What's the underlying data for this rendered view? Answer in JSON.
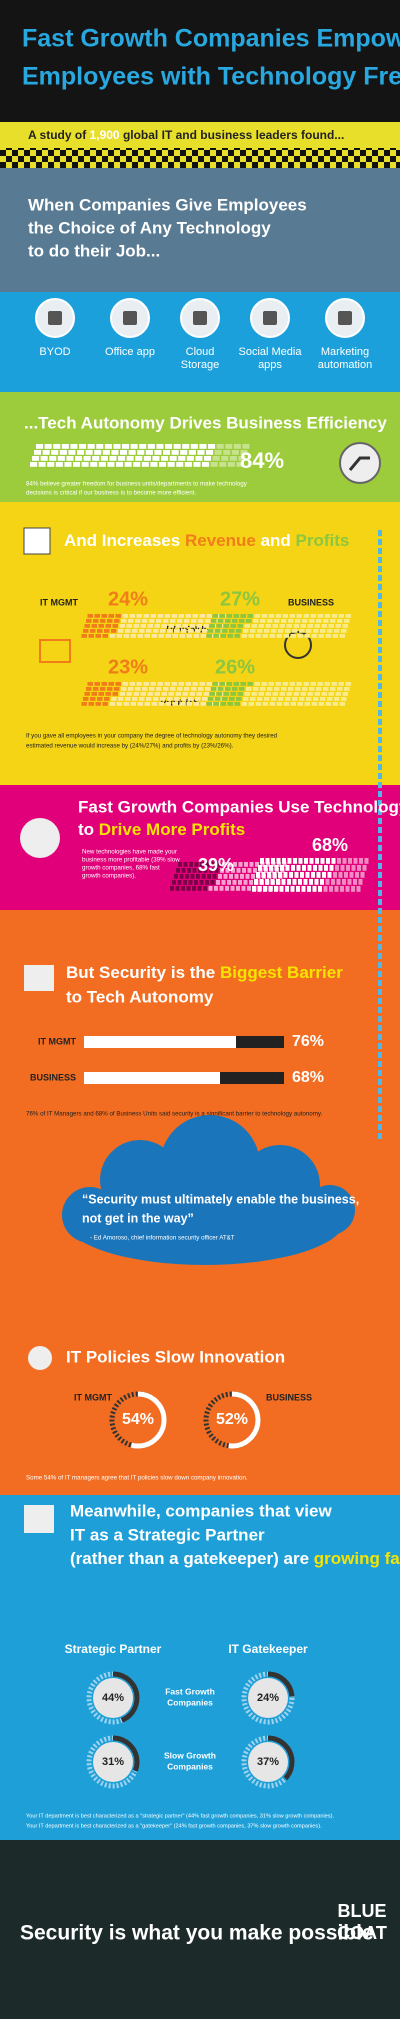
{
  "header": {
    "title": [
      "Fast Growth Companies Empower",
      "Employees with Technology Freedom"
    ]
  },
  "study": {
    "prefix": "A study of",
    "highlight": "1,900",
    "suffix": "global IT and business leaders found..."
  },
  "hero": {
    "lines": [
      "When Companies Give Employees",
      "the Choice of Any Technology",
      "to do their Job..."
    ],
    "icons": [
      [
        "BYOD"
      ],
      [
        "Office app"
      ],
      [
        "Cloud",
        "Storage"
      ],
      [
        "Social Media",
        "apps"
      ],
      [
        "Marketing",
        "automation"
      ]
    ]
  },
  "efficiency": {
    "title": "...Tech Autonomy Drives Business Efficiency",
    "stat": {
      "value": 84,
      "label": "84%"
    },
    "note": [
      "84% believe greater freedom for business units/departments to make technology",
      "decisions is critical if our business is to become more efficient."
    ]
  },
  "revenue": {
    "title": [
      "And Increases",
      "Revenue",
      "and",
      "Profits"
    ],
    "it_label": "IT MGMT",
    "business_label": "BUSINESS",
    "revenue_label": "REVENUE",
    "profits_label": "PROFITS",
    "it_revenue": {
      "value": 24,
      "label": "24%"
    },
    "business_revenue": {
      "value": 27,
      "label": "27%"
    },
    "it_profits": {
      "value": 23,
      "label": "23%"
    },
    "business_profits": {
      "value": 26,
      "label": "26%"
    },
    "note": [
      "If you gave all employees in your company the degree of technology autonomy they desired",
      "estimated revenue would increase by (24%/27%) and profits by (23%/26%)."
    ]
  },
  "profits": {
    "title": [
      "Fast Growth Companies Use Technology",
      "to",
      "Drive More Profits"
    ],
    "note": [
      "New technologies have made your",
      "business more profitable (39% slow",
      "growth companies, 68% fast",
      "growth companies)."
    ],
    "slow": {
      "value": 39,
      "label": "39%"
    },
    "fast": {
      "value": 68,
      "label": "68%"
    }
  },
  "security": {
    "title": [
      "But Security is the",
      "Biggest Barrier",
      "to Tech Autonomy"
    ],
    "it_label": "IT MGMT",
    "business_label": "BUSINESS",
    "it": {
      "value": 76,
      "label": "76%"
    },
    "business": {
      "value": 68,
      "label": "68%"
    },
    "note": "76% of IT Managers and 68% of Business Units said security is a significant barrier to technology autonomy."
  },
  "quote": {
    "lines": [
      "“Security must ultimately enable the business,",
      "not get in the way”"
    ],
    "attribution": "- Ed Amoroso, chief information security officer AT&T"
  },
  "policies": {
    "title": "IT Policies Slow Innovation",
    "it_label": "IT MGMT",
    "business_label": "BUSINESS",
    "it": {
      "value": 54,
      "label": "54%"
    },
    "business": {
      "value": 52,
      "label": "52%"
    },
    "note": "Some 54% of IT managers agree that IT policies slow down company innovation."
  },
  "partner": {
    "title": [
      "Meanwhile, companies that view",
      "IT as a Strategic Partner",
      "(rather than a gatekeeper) are",
      "growing fastest"
    ],
    "columns": [
      "Strategic Partner",
      "IT Gatekeeper"
    ],
    "rows": [
      [
        "Fast Growth",
        "Companies"
      ],
      [
        "Slow Growth",
        "Companies"
      ]
    ],
    "strategic": [
      {
        "value": 44,
        "label": "44%"
      },
      {
        "value": 31,
        "label": "31%"
      }
    ],
    "gatekeeper": [
      {
        "value": 24,
        "label": "24%"
      },
      {
        "value": 37,
        "label": "37%"
      }
    ],
    "notes": [
      "Your IT department is best characterized as a \"strategic partner\" (44% fast growth companies, 31% slow growth companies).",
      "Your IT department is best characterized as a \"gatekeeper\" (24% fast growth companies, 37% slow growth companies)."
    ]
  },
  "footer": {
    "tagline": "Security is what you make possible",
    "logo": [
      "BLUE",
      "COAT"
    ]
  }
}
